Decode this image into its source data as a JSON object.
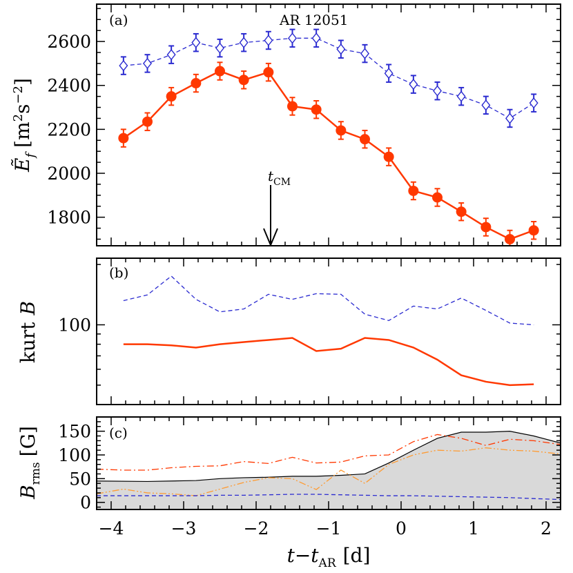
{
  "chart_data": [
    {
      "type": "line",
      "panel_tag": "(a)",
      "annotation": "AR 12051",
      "ylabel": "Ẽ",
      "ylabel_sub": "f",
      "ylabel_units": "[m",
      "ylabel_units_sup1": "2",
      "ylabel_units_mid": "s",
      "ylabel_units_sup2": "−2",
      "ylabel_units_end": "]",
      "ylim": [
        1670,
        2770
      ],
      "yticks": [
        1800,
        2000,
        2200,
        2400,
        2600
      ],
      "ytick_labels": [
        "1800",
        "2000",
        "2200",
        "2400",
        "2600"
      ],
      "marker_label": "t",
      "marker_label_sub": "CM",
      "marker_x": -1.8,
      "series": [
        {
          "color": "#2a2ad0",
          "style": "dashed",
          "marker": "diamond-open",
          "x": [
            -3.83,
            -3.5,
            -3.17,
            -2.83,
            -2.5,
            -2.17,
            -1.83,
            -1.5,
            -1.17,
            -0.83,
            -0.5,
            -0.17,
            0.17,
            0.5,
            0.83,
            1.17,
            1.5,
            1.83
          ],
          "y": [
            2490,
            2500,
            2540,
            2595,
            2570,
            2595,
            2605,
            2615,
            2615,
            2565,
            2545,
            2455,
            2405,
            2375,
            2350,
            2310,
            2250,
            2320
          ],
          "err": [
            40,
            40,
            40,
            40,
            40,
            40,
            40,
            40,
            40,
            40,
            40,
            40,
            40,
            40,
            40,
            40,
            40,
            40
          ]
        },
        {
          "color": "#ff3800",
          "style": "solid",
          "marker": "circle-filled",
          "x": [
            -3.83,
            -3.5,
            -3.17,
            -2.83,
            -2.5,
            -2.17,
            -1.83,
            -1.5,
            -1.17,
            -0.83,
            -0.5,
            -0.17,
            0.17,
            0.5,
            0.83,
            1.17,
            1.5,
            1.83
          ],
          "y": [
            2160,
            2235,
            2350,
            2410,
            2465,
            2425,
            2460,
            2305,
            2290,
            2195,
            2155,
            2075,
            1920,
            1890,
            1825,
            1755,
            1700,
            1740
          ],
          "err": [
            40,
            40,
            40,
            40,
            40,
            40,
            40,
            40,
            40,
            40,
            40,
            40,
            40,
            40,
            40,
            40,
            40,
            40
          ]
        }
      ]
    },
    {
      "type": "line",
      "panel_tag": "(b)",
      "ylabel": "kurt",
      "ylabel_var": "B",
      "yscale": "log",
      "ylim": [
        40,
        215
      ],
      "yticks": [
        100
      ],
      "ytick_labels": [
        "100"
      ],
      "series": [
        {
          "color": "#2a2ad0",
          "style": "dashed",
          "x": [
            -3.83,
            -3.5,
            -3.17,
            -2.83,
            -2.5,
            -2.17,
            -1.83,
            -1.5,
            -1.17,
            -0.83,
            -0.5,
            -0.17,
            0.17,
            0.5,
            0.83,
            1.17,
            1.5,
            1.83
          ],
          "y": [
            132,
            141,
            175,
            134,
            116,
            120,
            142,
            134,
            143,
            142,
            113,
            105,
            124,
            120,
            136,
            118,
            102,
            100
          ]
        },
        {
          "color": "#ff3800",
          "style": "solid",
          "x": [
            -3.83,
            -3.5,
            -3.17,
            -2.83,
            -2.5,
            -2.17,
            -1.83,
            -1.5,
            -1.17,
            -0.83,
            -0.5,
            -0.17,
            0.17,
            0.5,
            0.83,
            1.17,
            1.5,
            1.83
          ],
          "y": [
            80,
            80,
            79,
            77,
            80,
            82,
            84,
            86,
            74,
            76,
            86,
            84,
            77,
            67,
            56,
            52,
            50,
            50.5
          ]
        }
      ]
    },
    {
      "type": "area",
      "panel_tag": "(c)",
      "ylabel": "B",
      "ylabel_sub": "rms",
      "ylabel_units": "[G]",
      "ylim": [
        -15,
        180
      ],
      "yticks": [
        0,
        50,
        100,
        150
      ],
      "ytick_labels": [
        "0",
        "50",
        "100",
        "150"
      ],
      "xlabel": "t−t",
      "xlabel_sub": "AR",
      "xlabel_units": "[d]",
      "xlim": [
        -4.2,
        2.2
      ],
      "xticks": [
        -4,
        -3,
        -2,
        -1,
        0,
        1,
        2
      ],
      "xtick_labels": [
        "−4",
        "−3",
        "−2",
        "−1",
        "0",
        "1",
        "2"
      ],
      "series": [
        {
          "style": "filled-area",
          "color": "#000000",
          "fill": "#d9d9d9",
          "x": [
            -4.2,
            -3.5,
            -3.17,
            -2.83,
            -2.5,
            -2.17,
            -1.83,
            -1.5,
            -1.17,
            -0.83,
            -0.5,
            -0.17,
            0.17,
            0.5,
            0.83,
            1.17,
            1.5,
            1.83,
            2.2
          ],
          "y": [
            45,
            44,
            45,
            46,
            50,
            52,
            53,
            55,
            55,
            57,
            60,
            83,
            110,
            135,
            148,
            148,
            150,
            140,
            125
          ]
        },
        {
          "color": "#ff3800",
          "style": "dashdot",
          "x": [
            -4.2,
            -3.83,
            -3.5,
            -3.17,
            -2.83,
            -2.5,
            -2.17,
            -1.83,
            -1.5,
            -1.17,
            -0.83,
            -0.5,
            -0.17,
            0.17,
            0.5,
            0.83,
            1.17,
            1.5,
            1.83,
            2.2
          ],
          "y": [
            70,
            68,
            68,
            73,
            76,
            77,
            86,
            82,
            95,
            83,
            85,
            98,
            100,
            128,
            143,
            135,
            120,
            133,
            130,
            122
          ]
        },
        {
          "color": "#ff9a30",
          "style": "dashdotdot",
          "x": [
            -4.2,
            -3.83,
            -3.5,
            -3.17,
            -2.83,
            -2.5,
            -2.17,
            -1.83,
            -1.5,
            -1.17,
            -0.83,
            -0.5,
            -0.17,
            0.17,
            0.5,
            0.83,
            1.17,
            1.5,
            1.83,
            2.2
          ],
          "y": [
            18,
            28,
            20,
            18,
            14,
            28,
            42,
            52,
            50,
            27,
            68,
            40,
            80,
            100,
            110,
            108,
            115,
            110,
            108,
            102
          ]
        },
        {
          "color": "#2a2ad0",
          "style": "dashed",
          "x": [
            -4.2,
            -3.83,
            -3.5,
            -3.17,
            -2.83,
            -2.5,
            -2.17,
            -1.83,
            -1.5,
            -1.17,
            -0.83,
            -0.5,
            -0.17,
            0.17,
            0.5,
            0.83,
            1.17,
            1.5,
            1.83,
            2.2
          ],
          "y": [
            14,
            14,
            14,
            14,
            14,
            15,
            15,
            16,
            17,
            17,
            16,
            15,
            14,
            14,
            13,
            12,
            11,
            10,
            8,
            6
          ]
        }
      ]
    }
  ]
}
